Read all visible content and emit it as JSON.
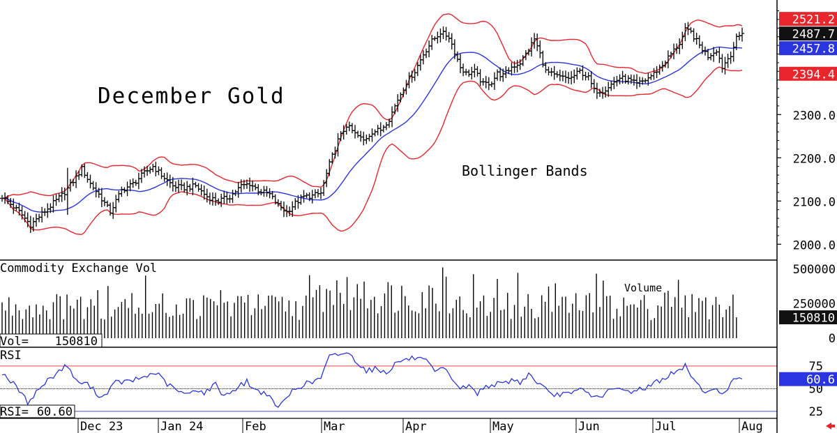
{
  "chart_data": {
    "type": "bar",
    "subtype": "ohlc-with-bollinger-bands",
    "title": "December Gold",
    "annotation": "Bollinger Bands",
    "x_months": [
      "Dec 23",
      "Jan 24",
      "Feb",
      "Mar",
      "Apr",
      "May",
      "Jun",
      "Jul",
      "Aug"
    ],
    "price_axis": {
      "ticks": [
        "2000.0",
        "2100.0",
        "2200.0",
        "2300.0"
      ],
      "ylim": [
        1965,
        2565
      ]
    },
    "price_labels": [
      {
        "text": "2521.2",
        "value": 2521.2,
        "color": "#e8262b"
      },
      {
        "text": "2487.7",
        "value": 2487.7,
        "color": "#111111"
      },
      {
        "text": "2457.8",
        "value": 2457.8,
        "color": "#2a35e0"
      },
      {
        "text": "2394.4",
        "value": 2394.4,
        "color": "#e8262b"
      }
    ],
    "price_anchors": [
      [
        0,
        2110
      ],
      [
        6,
        2075
      ],
      [
        10,
        2045
      ],
      [
        14,
        2070
      ],
      [
        18,
        2095
      ],
      [
        22,
        2120
      ],
      [
        26,
        2155
      ],
      [
        28,
        2175
      ],
      [
        31,
        2140
      ],
      [
        34,
        2115
      ],
      [
        38,
        2075
      ],
      [
        42,
        2125
      ],
      [
        46,
        2140
      ],
      [
        50,
        2165
      ],
      [
        53,
        2180
      ],
      [
        56,
        2160
      ],
      [
        60,
        2135
      ],
      [
        64,
        2130
      ],
      [
        68,
        2135
      ],
      [
        72,
        2110
      ],
      [
        76,
        2100
      ],
      [
        80,
        2110
      ],
      [
        84,
        2135
      ],
      [
        87,
        2140
      ],
      [
        90,
        2125
      ],
      [
        94,
        2115
      ],
      [
        97,
        2090
      ],
      [
        100,
        2075
      ],
      [
        103,
        2095
      ],
      [
        106,
        2110
      ],
      [
        109,
        2112
      ],
      [
        112,
        2118
      ],
      [
        115,
        2185
      ],
      [
        118,
        2240
      ],
      [
        121,
        2275
      ],
      [
        124,
        2255
      ],
      [
        127,
        2240
      ],
      [
        130,
        2260
      ],
      [
        133,
        2265
      ],
      [
        136,
        2290
      ],
      [
        139,
        2335
      ],
      [
        142,
        2375
      ],
      [
        145,
        2400
      ],
      [
        148,
        2440
      ],
      [
        151,
        2470
      ],
      [
        154,
        2490
      ],
      [
        157,
        2480
      ],
      [
        159,
        2445
      ],
      [
        161,
        2410
      ],
      [
        163,
        2395
      ],
      [
        166,
        2400
      ],
      [
        169,
        2370
      ],
      [
        172,
        2375
      ],
      [
        174,
        2395
      ],
      [
        176,
        2390
      ],
      [
        179,
        2410
      ],
      [
        182,
        2420
      ],
      [
        185,
        2450
      ],
      [
        187,
        2475
      ],
      [
        189,
        2440
      ],
      [
        191,
        2400
      ],
      [
        194,
        2390
      ],
      [
        197,
        2385
      ],
      [
        200,
        2385
      ],
      [
        203,
        2400
      ],
      [
        206,
        2385
      ],
      [
        208,
        2355
      ],
      [
        211,
        2355
      ],
      [
        214,
        2370
      ],
      [
        217,
        2385
      ],
      [
        220,
        2380
      ],
      [
        223,
        2370
      ],
      [
        226,
        2380
      ],
      [
        229,
        2395
      ],
      [
        232,
        2415
      ],
      [
        235,
        2440
      ],
      [
        238,
        2465
      ],
      [
        240,
        2495
      ],
      [
        242,
        2490
      ],
      [
        245,
        2460
      ],
      [
        248,
        2435
      ],
      [
        251,
        2450
      ],
      [
        253,
        2410
      ],
      [
        256,
        2440
      ],
      [
        258,
        2475
      ],
      [
        260,
        2488
      ]
    ],
    "rsi_anchors": [
      [
        0,
        68
      ],
      [
        5,
        52
      ],
      [
        9,
        35
      ],
      [
        13,
        50
      ],
      [
        17,
        62
      ],
      [
        21,
        72
      ],
      [
        23,
        76
      ],
      [
        26,
        58
      ],
      [
        30,
        55
      ],
      [
        35,
        40
      ],
      [
        40,
        57
      ],
      [
        45,
        58
      ],
      [
        50,
        63
      ],
      [
        54,
        68
      ],
      [
        58,
        55
      ],
      [
        62,
        47
      ],
      [
        65,
        43
      ],
      [
        68,
        50
      ],
      [
        71,
        45
      ],
      [
        75,
        55
      ],
      [
        78,
        42
      ],
      [
        82,
        50
      ],
      [
        86,
        58
      ],
      [
        89,
        48
      ],
      [
        93,
        45
      ],
      [
        96,
        30
      ],
      [
        99,
        35
      ],
      [
        102,
        48
      ],
      [
        106,
        55
      ],
      [
        109,
        57
      ],
      [
        112,
        62
      ],
      [
        115,
        85
      ],
      [
        118,
        88
      ],
      [
        121,
        90
      ],
      [
        124,
        82
      ],
      [
        128,
        70
      ],
      [
        131,
        72
      ],
      [
        135,
        68
      ],
      [
        139,
        80
      ],
      [
        142,
        82
      ],
      [
        145,
        84
      ],
      [
        149,
        80
      ],
      [
        152,
        68
      ],
      [
        155,
        72
      ],
      [
        158,
        62
      ],
      [
        161,
        50
      ],
      [
        164,
        53
      ],
      [
        167,
        45
      ],
      [
        170,
        53
      ],
      [
        173,
        55
      ],
      [
        176,
        55
      ],
      [
        179,
        60
      ],
      [
        182,
        57
      ],
      [
        185,
        66
      ],
      [
        187,
        60
      ],
      [
        190,
        52
      ],
      [
        193,
        42
      ],
      [
        197,
        45
      ],
      [
        200,
        43
      ],
      [
        203,
        50
      ],
      [
        206,
        45
      ],
      [
        209,
        40
      ],
      [
        212,
        45
      ],
      [
        215,
        50
      ],
      [
        218,
        48
      ],
      [
        221,
        47
      ],
      [
        224,
        50
      ],
      [
        227,
        52
      ],
      [
        230,
        58
      ],
      [
        233,
        62
      ],
      [
        235,
        66
      ],
      [
        238,
        70
      ],
      [
        240,
        75
      ],
      [
        242,
        66
      ],
      [
        245,
        52
      ],
      [
        248,
        46
      ],
      [
        251,
        48
      ],
      [
        253,
        45
      ],
      [
        256,
        55
      ],
      [
        258,
        62
      ],
      [
        260,
        61
      ]
    ],
    "volume_panel": {
      "title": "Commodity Exchange Vol",
      "annotation": "Volume",
      "ticks": [
        "500000",
        "250000",
        "0"
      ],
      "ylim": [
        0,
        560000
      ],
      "current_label": "Vol=",
      "current_value": "150810",
      "last_label": "150810",
      "last_value": 150810
    },
    "rsi_panel": {
      "title": "RSI",
      "ticks": [
        "75",
        "50",
        "25"
      ],
      "ylim": [
        18,
        95
      ],
      "overbought": 75,
      "oversold": 25,
      "current_label": "RSI=",
      "current_value": "60.60",
      "last_label": "60.6",
      "last_value": 60.6
    },
    "colors": {
      "bars": "#000000",
      "upper_band": "#e8262b",
      "lower_band": "#e8262b",
      "middle_band": "#2a35e0",
      "rsi_line": "#2a35e0",
      "rsi_overbought_line": "#e8262b",
      "arrow": "#e8262b"
    }
  }
}
